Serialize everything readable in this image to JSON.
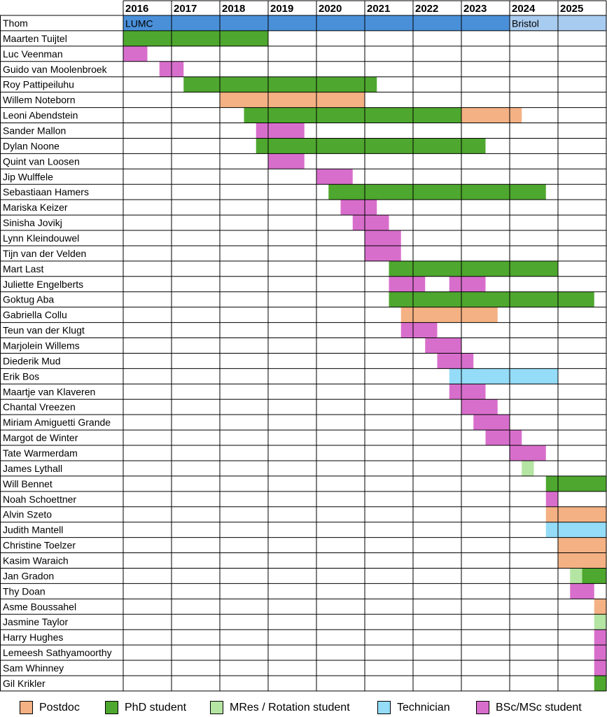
{
  "colors": {
    "postdoc": "#f4b183",
    "phd": "#4ea72e",
    "mres": "#b4e5a2",
    "technician": "#94dcf8",
    "bsc": "#d86ecc",
    "lumc": "#4a90d9",
    "bristol": "#a8cbf0",
    "grid": "#000000"
  },
  "legend": [
    {
      "key": "postdoc",
      "label": "Postdoc"
    },
    {
      "key": "phd",
      "label": "PhD student"
    },
    {
      "key": "mres",
      "label": "MRes / Rotation student"
    },
    {
      "key": "technician",
      "label": "Technician"
    },
    {
      "key": "bsc",
      "label": "BSc/MSc student"
    }
  ],
  "chart_data": {
    "type": "gantt",
    "x_start": 2016,
    "x_end": 2026,
    "years": [
      "2016",
      "2017",
      "2018",
      "2019",
      "2020",
      "2021",
      "2022",
      "2023",
      "2024",
      "2025"
    ],
    "rows": [
      {
        "name": "Thom",
        "bars": [
          {
            "start": 2016.0,
            "end": 2024.0,
            "type": "lumc",
            "label": "LUMC"
          },
          {
            "start": 2024.0,
            "end": 2026.0,
            "type": "bristol",
            "label": "Bristol"
          }
        ]
      },
      {
        "name": "Maarten Tuijtel",
        "bars": [
          {
            "start": 2016.0,
            "end": 2019.0,
            "type": "phd"
          }
        ]
      },
      {
        "name": "Luc Veenman",
        "bars": [
          {
            "start": 2016.0,
            "end": 2016.5,
            "type": "bsc"
          }
        ]
      },
      {
        "name": "Guido van Moolenbroek",
        "bars": [
          {
            "start": 2016.75,
            "end": 2017.25,
            "type": "bsc"
          }
        ]
      },
      {
        "name": "Roy Pattipeiluhu",
        "bars": [
          {
            "start": 2017.25,
            "end": 2021.25,
            "type": "phd"
          }
        ]
      },
      {
        "name": "Willem Noteborn",
        "bars": [
          {
            "start": 2018.0,
            "end": 2021.0,
            "type": "postdoc"
          }
        ]
      },
      {
        "name": "Leoni Abendstein",
        "bars": [
          {
            "start": 2018.5,
            "end": 2023.0,
            "type": "phd"
          },
          {
            "start": 2023.0,
            "end": 2024.25,
            "type": "postdoc"
          }
        ]
      },
      {
        "name": "Sander Mallon",
        "bars": [
          {
            "start": 2018.75,
            "end": 2019.75,
            "type": "bsc"
          }
        ]
      },
      {
        "name": "Dylan Noone",
        "bars": [
          {
            "start": 2018.75,
            "end": 2023.5,
            "type": "phd"
          }
        ]
      },
      {
        "name": "Quint van Loosen",
        "bars": [
          {
            "start": 2019.0,
            "end": 2019.75,
            "type": "bsc"
          }
        ]
      },
      {
        "name": "Jip Wulffele",
        "bars": [
          {
            "start": 2020.0,
            "end": 2020.75,
            "type": "bsc"
          }
        ]
      },
      {
        "name": "Sebastiaan Hamers",
        "bars": [
          {
            "start": 2020.25,
            "end": 2024.75,
            "type": "phd"
          }
        ]
      },
      {
        "name": "Mariska Keizer",
        "bars": [
          {
            "start": 2020.5,
            "end": 2021.25,
            "type": "bsc"
          }
        ]
      },
      {
        "name": "Sinisha Jovikj",
        "bars": [
          {
            "start": 2020.75,
            "end": 2021.5,
            "type": "bsc"
          }
        ]
      },
      {
        "name": "Lynn Kleindouwel",
        "bars": [
          {
            "start": 2021.0,
            "end": 2021.75,
            "type": "bsc"
          }
        ]
      },
      {
        "name": "Tijn van der Velden",
        "bars": [
          {
            "start": 2021.0,
            "end": 2021.75,
            "type": "bsc"
          }
        ]
      },
      {
        "name": "Mart Last",
        "bars": [
          {
            "start": 2021.5,
            "end": 2025.0,
            "type": "phd"
          }
        ]
      },
      {
        "name": "Juliette Engelberts",
        "bars": [
          {
            "start": 2021.5,
            "end": 2022.25,
            "type": "bsc"
          },
          {
            "start": 2022.75,
            "end": 2023.5,
            "type": "bsc"
          }
        ]
      },
      {
        "name": "Goktug Aba",
        "bars": [
          {
            "start": 2021.5,
            "end": 2025.75,
            "type": "phd"
          }
        ]
      },
      {
        "name": "Gabriella Collu",
        "bars": [
          {
            "start": 2021.75,
            "end": 2023.75,
            "type": "postdoc"
          }
        ]
      },
      {
        "name": "Teun van der Klugt",
        "bars": [
          {
            "start": 2021.75,
            "end": 2022.5,
            "type": "bsc"
          }
        ]
      },
      {
        "name": "Marjolein Willems",
        "bars": [
          {
            "start": 2022.25,
            "end": 2023.0,
            "type": "bsc"
          }
        ]
      },
      {
        "name": "Diederik Mud",
        "bars": [
          {
            "start": 2022.5,
            "end": 2023.25,
            "type": "bsc"
          }
        ]
      },
      {
        "name": "Erik Bos",
        "bars": [
          {
            "start": 2022.75,
            "end": 2025.0,
            "type": "technician"
          }
        ]
      },
      {
        "name": "Maartje van Klaveren",
        "bars": [
          {
            "start": 2022.75,
            "end": 2023.5,
            "type": "bsc"
          }
        ]
      },
      {
        "name": "Chantal Vreezen",
        "bars": [
          {
            "start": 2023.0,
            "end": 2023.75,
            "type": "bsc"
          }
        ]
      },
      {
        "name": "Miriam Amiguetti Grande",
        "bars": [
          {
            "start": 2023.25,
            "end": 2024.0,
            "type": "bsc"
          }
        ]
      },
      {
        "name": "Margot de Winter",
        "bars": [
          {
            "start": 2023.5,
            "end": 2024.25,
            "type": "bsc"
          }
        ]
      },
      {
        "name": "Tate Warmerdam",
        "bars": [
          {
            "start": 2024.0,
            "end": 2024.75,
            "type": "bsc"
          }
        ]
      },
      {
        "name": "James Lythall",
        "bars": [
          {
            "start": 2024.25,
            "end": 2024.5,
            "type": "mres"
          }
        ]
      },
      {
        "name": "Will Bennet",
        "bars": [
          {
            "start": 2024.75,
            "end": 2025.0,
            "type": "phd"
          },
          {
            "start": 2025.0,
            "end": 2026.0,
            "type": "phd"
          }
        ]
      },
      {
        "name": "Noah Schoettner",
        "bars": [
          {
            "start": 2024.75,
            "end": 2025.0,
            "type": "bsc"
          }
        ]
      },
      {
        "name": "Alvin Szeto",
        "bars": [
          {
            "start": 2024.75,
            "end": 2025.0,
            "type": "postdoc"
          },
          {
            "start": 2025.0,
            "end": 2026.0,
            "type": "postdoc"
          }
        ]
      },
      {
        "name": "Judith Mantell",
        "bars": [
          {
            "start": 2024.75,
            "end": 2025.0,
            "type": "technician"
          },
          {
            "start": 2025.0,
            "end": 2026.0,
            "type": "technician"
          }
        ]
      },
      {
        "name": "Christine Toelzer",
        "bars": [
          {
            "start": 2025.0,
            "end": 2026.0,
            "type": "postdoc"
          }
        ]
      },
      {
        "name": "Kasim Waraich",
        "bars": [
          {
            "start": 2025.0,
            "end": 2026.0,
            "type": "postdoc"
          }
        ]
      },
      {
        "name": "Jan Gradon",
        "bars": [
          {
            "start": 2025.25,
            "end": 2025.5,
            "type": "mres"
          },
          {
            "start": 2025.5,
            "end": 2026.0,
            "type": "phd"
          }
        ]
      },
      {
        "name": "Thy Doan",
        "bars": [
          {
            "start": 2025.25,
            "end": 2025.75,
            "type": "bsc"
          }
        ]
      },
      {
        "name": "Asme Boussahel",
        "bars": [
          {
            "start": 2025.75,
            "end": 2026.0,
            "type": "postdoc"
          }
        ]
      },
      {
        "name": "Jasmine Taylor",
        "bars": [
          {
            "start": 2025.75,
            "end": 2026.0,
            "type": "mres"
          }
        ]
      },
      {
        "name": "Harry Hughes",
        "bars": [
          {
            "start": 2025.75,
            "end": 2026.0,
            "type": "bsc"
          }
        ]
      },
      {
        "name": "Lemeesh Sathyamoorthy",
        "bars": [
          {
            "start": 2025.75,
            "end": 2026.0,
            "type": "bsc"
          }
        ]
      },
      {
        "name": "Sam Whinney",
        "bars": [
          {
            "start": 2025.75,
            "end": 2026.0,
            "type": "bsc"
          }
        ]
      },
      {
        "name": "Gil Krikler",
        "bars": [
          {
            "start": 2025.75,
            "end": 2026.0,
            "type": "phd"
          }
        ]
      }
    ]
  }
}
